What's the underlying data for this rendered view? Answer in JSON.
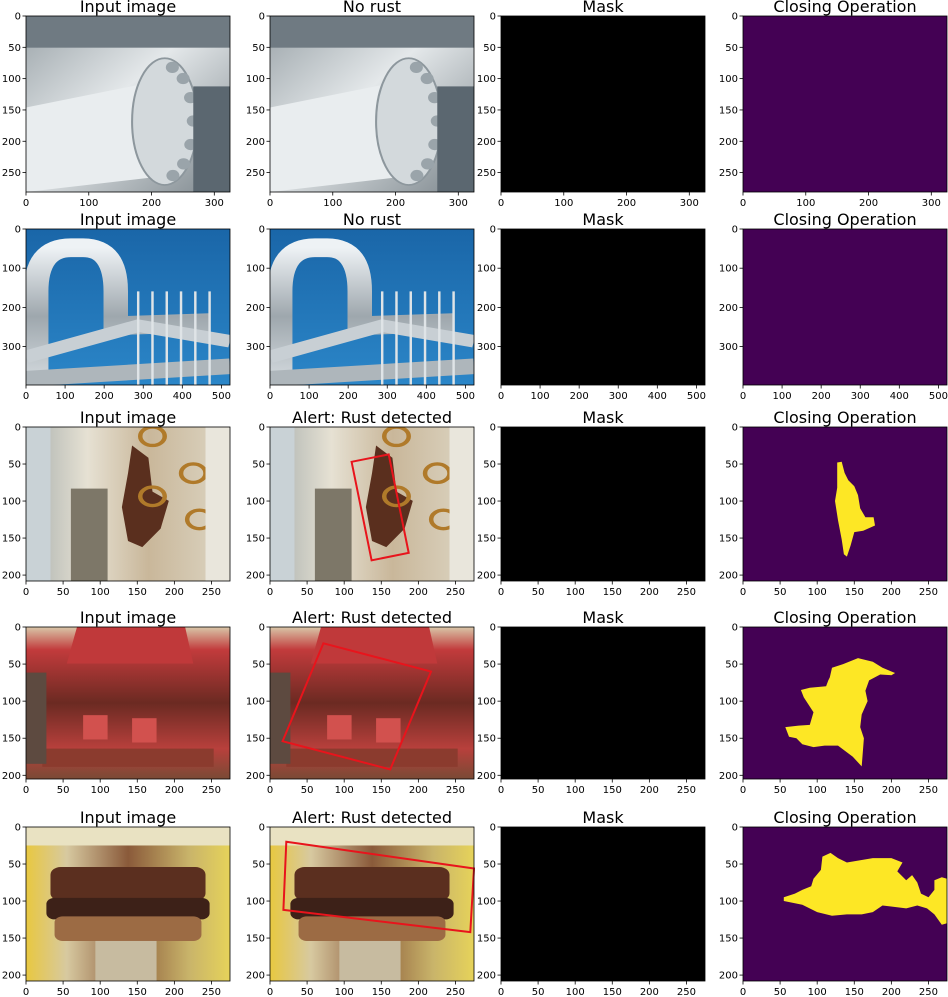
{
  "colors": {
    "mask_background": "#000000",
    "closing_background": "#440154",
    "closing_region": "#fde725",
    "detection_box": "#e8141c",
    "input_pipe_sky": "#1f72b3",
    "input_rust_brown": "#5a2f1e",
    "input_red_paint": "#c0393a"
  },
  "chart_data": [
    {
      "type": "image",
      "row": 0,
      "panel": "input",
      "title": "Input image",
      "image_size": [
        325,
        281
      ],
      "xticks": [
        0,
        100,
        200,
        300
      ],
      "yticks": [
        0,
        50,
        100,
        150,
        200,
        250
      ],
      "scene": "grey-flange-pipe"
    },
    {
      "type": "image",
      "row": 0,
      "panel": "result",
      "title": "No rust",
      "image_size": [
        325,
        281
      ],
      "xticks": [
        0,
        100,
        200,
        300
      ],
      "yticks": [
        0,
        50,
        100,
        150,
        200,
        250
      ],
      "scene": "grey-flange-pipe"
    },
    {
      "type": "image",
      "row": 0,
      "panel": "mask",
      "title": "Mask",
      "image_size": [
        325,
        281
      ],
      "xticks": [
        0,
        100,
        200,
        300
      ],
      "yticks": [
        0,
        50,
        100,
        150,
        200,
        250
      ]
    },
    {
      "type": "image",
      "row": 0,
      "panel": "closing",
      "title": "Closing Operation",
      "image_size": [
        325,
        281
      ],
      "xticks": [
        0,
        100,
        200,
        300
      ],
      "yticks": [
        0,
        50,
        100,
        150,
        200,
        250
      ],
      "region": []
    },
    {
      "type": "image",
      "row": 1,
      "panel": "input",
      "title": "Input image",
      "image_size": [
        522,
        398
      ],
      "xticks": [
        0,
        100,
        200,
        300,
        400,
        500
      ],
      "yticks": [
        0,
        100,
        200,
        300
      ],
      "scene": "steel-pipes-sky"
    },
    {
      "type": "image",
      "row": 1,
      "panel": "result",
      "title": "No rust",
      "image_size": [
        522,
        398
      ],
      "xticks": [
        0,
        100,
        200,
        300,
        400,
        500
      ],
      "yticks": [
        0,
        100,
        200,
        300
      ],
      "scene": "steel-pipes-sky"
    },
    {
      "type": "image",
      "row": 1,
      "panel": "mask",
      "title": "Mask",
      "image_size": [
        522,
        398
      ],
      "xticks": [
        0,
        100,
        200,
        300,
        400,
        500
      ],
      "yticks": [
        0,
        100,
        200,
        300
      ]
    },
    {
      "type": "image",
      "row": 1,
      "panel": "closing",
      "title": "Closing Operation",
      "image_size": [
        522,
        398
      ],
      "xticks": [
        0,
        100,
        200,
        300,
        400,
        500
      ],
      "yticks": [
        0,
        100,
        200,
        300
      ],
      "region": []
    },
    {
      "type": "image",
      "row": 2,
      "panel": "input",
      "title": "Input image",
      "image_size": [
        275,
        208
      ],
      "xticks": [
        0,
        50,
        100,
        150,
        200,
        250
      ],
      "yticks": [
        0,
        50,
        100,
        150,
        200
      ],
      "scene": "rusty-valve-white"
    },
    {
      "type": "image",
      "row": 2,
      "panel": "result",
      "title": "Alert: Rust detected",
      "image_size": [
        275,
        208
      ],
      "xticks": [
        0,
        50,
        100,
        150,
        200,
        250
      ],
      "yticks": [
        0,
        50,
        100,
        150,
        200
      ],
      "scene": "rusty-valve-white",
      "box": [
        [
          110,
          47
        ],
        [
          160,
          37
        ],
        [
          187,
          170
        ],
        [
          137,
          180
        ]
      ]
    },
    {
      "type": "image",
      "row": 2,
      "panel": "mask",
      "title": "Mask",
      "image_size": [
        275,
        208
      ],
      "xticks": [
        0,
        50,
        100,
        150,
        200,
        250
      ],
      "yticks": [
        0,
        50,
        100,
        150,
        200
      ]
    },
    {
      "type": "image",
      "row": 2,
      "panel": "closing",
      "title": "Closing Operation",
      "image_size": [
        275,
        208
      ],
      "xticks": [
        0,
        50,
        100,
        150,
        200,
        250
      ],
      "yticks": [
        0,
        50,
        100,
        150,
        200
      ],
      "region": [
        [
          127,
          48
        ],
        [
          133,
          47
        ],
        [
          137,
          62
        ],
        [
          142,
          72
        ],
        [
          150,
          80
        ],
        [
          155,
          92
        ],
        [
          158,
          110
        ],
        [
          165,
          122
        ],
        [
          176,
          122
        ],
        [
          178,
          133
        ],
        [
          162,
          140
        ],
        [
          150,
          142
        ],
        [
          145,
          160
        ],
        [
          140,
          175
        ],
        [
          136,
          172
        ],
        [
          133,
          152
        ],
        [
          128,
          126
        ],
        [
          124,
          100
        ],
        [
          127,
          82
        ],
        [
          127,
          62
        ]
      ]
    },
    {
      "type": "image",
      "row": 3,
      "panel": "input",
      "title": "Input image",
      "image_size": [
        275,
        205
      ],
      "xticks": [
        0,
        50,
        100,
        150,
        200,
        250
      ],
      "yticks": [
        0,
        50,
        100,
        150,
        200
      ],
      "scene": "red-bolts-rust"
    },
    {
      "type": "image",
      "row": 3,
      "panel": "result",
      "title": "Alert: Rust detected",
      "image_size": [
        275,
        205
      ],
      "xticks": [
        0,
        50,
        100,
        150,
        200,
        250
      ],
      "yticks": [
        0,
        50,
        100,
        150,
        200
      ],
      "scene": "red-bolts-rust",
      "box": [
        [
          72,
          22
        ],
        [
          217,
          60
        ],
        [
          162,
          192
        ],
        [
          17,
          154
        ]
      ]
    },
    {
      "type": "image",
      "row": 3,
      "panel": "mask",
      "title": "Mask",
      "image_size": [
        275,
        205
      ],
      "xticks": [
        0,
        50,
        100,
        150,
        200,
        250
      ],
      "yticks": [
        0,
        50,
        100,
        150,
        200
      ]
    },
    {
      "type": "image",
      "row": 3,
      "panel": "closing",
      "title": "Closing Operation",
      "image_size": [
        275,
        205
      ],
      "xticks": [
        0,
        50,
        100,
        150,
        200,
        250
      ],
      "yticks": [
        0,
        50,
        100,
        150,
        200
      ],
      "region": [
        [
          117,
          68
        ],
        [
          120,
          55
        ],
        [
          135,
          50
        ],
        [
          155,
          42
        ],
        [
          175,
          47
        ],
        [
          188,
          55
        ],
        [
          205,
          62
        ],
        [
          200,
          65
        ],
        [
          185,
          64
        ],
        [
          170,
          72
        ],
        [
          165,
          86
        ],
        [
          168,
          100
        ],
        [
          160,
          118
        ],
        [
          158,
          135
        ],
        [
          163,
          150
        ],
        [
          160,
          188
        ],
        [
          148,
          175
        ],
        [
          128,
          160
        ],
        [
          110,
          160
        ],
        [
          95,
          162
        ],
        [
          80,
          158
        ],
        [
          72,
          150
        ],
        [
          62,
          148
        ],
        [
          57,
          135
        ],
        [
          75,
          133
        ],
        [
          90,
          132
        ],
        [
          95,
          115
        ],
        [
          82,
          95
        ],
        [
          78,
          85
        ],
        [
          90,
          82
        ],
        [
          112,
          80
        ],
        [
          115,
          72
        ]
      ]
    },
    {
      "type": "image",
      "row": 4,
      "panel": "input",
      "title": "Input image",
      "image_size": [
        275,
        208
      ],
      "xticks": [
        0,
        50,
        100,
        150,
        200,
        250
      ],
      "yticks": [
        0,
        50,
        100,
        150,
        200
      ],
      "scene": "rusty-flange-yellow"
    },
    {
      "type": "image",
      "row": 4,
      "panel": "result",
      "title": "Alert: Rust detected",
      "image_size": [
        275,
        208
      ],
      "xticks": [
        0,
        50,
        100,
        150,
        200,
        250
      ],
      "yticks": [
        0,
        50,
        100,
        150,
        200
      ],
      "scene": "rusty-flange-yellow",
      "box": [
        [
          22,
          20
        ],
        [
          275,
          56
        ],
        [
          270,
          142
        ],
        [
          18,
          112
        ]
      ]
    },
    {
      "type": "image",
      "row": 4,
      "panel": "mask",
      "title": "Mask",
      "image_size": [
        275,
        208
      ],
      "xticks": [
        0,
        50,
        100,
        150,
        200,
        250
      ],
      "yticks": [
        0,
        50,
        100,
        150,
        200
      ]
    },
    {
      "type": "image",
      "row": 4,
      "panel": "closing",
      "title": "Closing Operation",
      "image_size": [
        275,
        208
      ],
      "xticks": [
        0,
        50,
        100,
        150,
        200,
        250
      ],
      "yticks": [
        0,
        50,
        100,
        150,
        200
      ],
      "region": [
        [
          95,
          70
        ],
        [
          105,
          58
        ],
        [
          107,
          40
        ],
        [
          118,
          35
        ],
        [
          128,
          42
        ],
        [
          140,
          48
        ],
        [
          158,
          45
        ],
        [
          175,
          42
        ],
        [
          200,
          42
        ],
        [
          215,
          48
        ],
        [
          208,
          60
        ],
        [
          220,
          72
        ],
        [
          228,
          65
        ],
        [
          235,
          75
        ],
        [
          240,
          90
        ],
        [
          250,
          95
        ],
        [
          258,
          85
        ],
        [
          258,
          72
        ],
        [
          268,
          68
        ],
        [
          275,
          70
        ],
        [
          275,
          130
        ],
        [
          268,
          132
        ],
        [
          258,
          118
        ],
        [
          248,
          110
        ],
        [
          235,
          106
        ],
        [
          220,
          110
        ],
        [
          205,
          108
        ],
        [
          188,
          106
        ],
        [
          175,
          115
        ],
        [
          160,
          118
        ],
        [
          140,
          118
        ],
        [
          120,
          120
        ],
        [
          100,
          115
        ],
        [
          80,
          105
        ],
        [
          55,
          100
        ],
        [
          55,
          95
        ],
        [
          70,
          90
        ],
        [
          80,
          85
        ],
        [
          92,
          80
        ]
      ]
    }
  ]
}
